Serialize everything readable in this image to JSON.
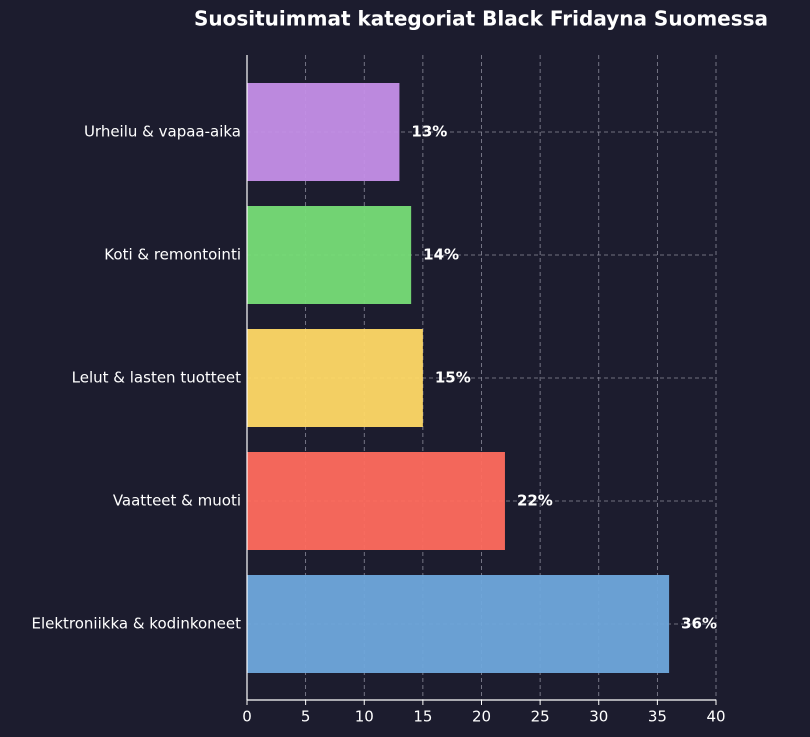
{
  "chart_data": {
    "type": "barh",
    "title": "Suosituimmat kategoriat Black Fridayna Suomessa",
    "categories": [
      "Elektroniikka & kodinkoneet",
      "Vaatteet & muoti",
      "Lelut & lasten tuotteet",
      "Koti & remontointi",
      "Urheilu & vapaa-aika"
    ],
    "values": [
      36,
      22,
      15,
      14,
      13
    ],
    "value_labels": [
      "36%",
      "22%",
      "15%",
      "14%",
      "13%"
    ],
    "colors": [
      "#6fa8dc",
      "#ff6b5e",
      "#ffd966",
      "#77dd77",
      "#c58fe8"
    ],
    "xlim": [
      0,
      40
    ],
    "xticks": [
      0,
      5,
      10,
      15,
      20,
      25,
      30,
      35,
      40
    ],
    "grid": true
  }
}
